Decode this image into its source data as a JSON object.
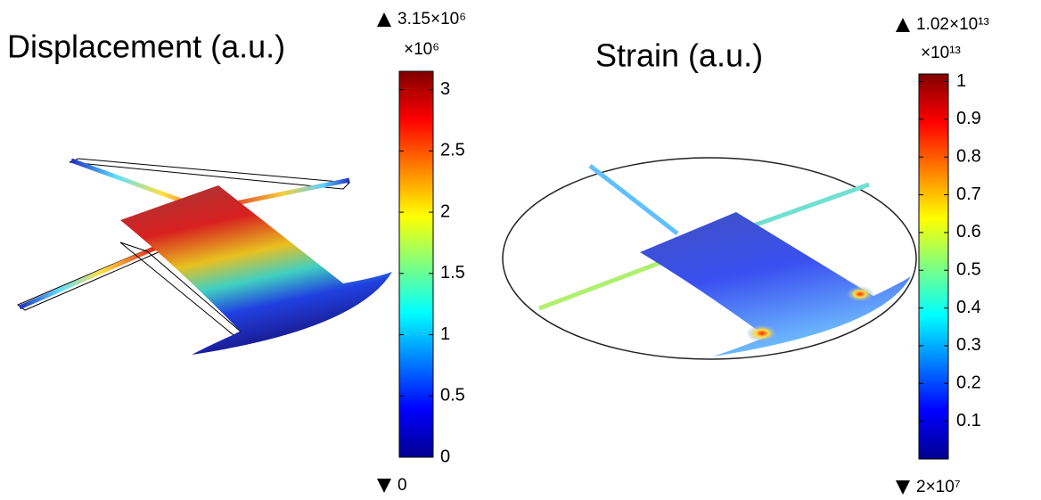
{
  "chart_data": [
    {
      "type": "colormap",
      "title": "Displacement (a.u.)",
      "max_label": "3.15×10⁶",
      "scale_label": "×10⁶",
      "min_label": "0",
      "colormap": "jet",
      "ylim": [
        0,
        3.15
      ],
      "yticks": [
        0,
        0.5,
        1,
        1.5,
        2,
        2.5,
        3
      ]
    },
    {
      "type": "colormap",
      "title": "Strain (a.u.)",
      "max_label": "1.02×10¹³",
      "scale_label": "×10¹³",
      "min_label": "2×10⁷",
      "colormap": "jet",
      "ylim": [
        2e-06,
        1.02
      ],
      "yticks": [
        0.1,
        0.2,
        0.3,
        0.4,
        0.5,
        0.6,
        0.7,
        0.8,
        0.9,
        1
      ]
    }
  ]
}
